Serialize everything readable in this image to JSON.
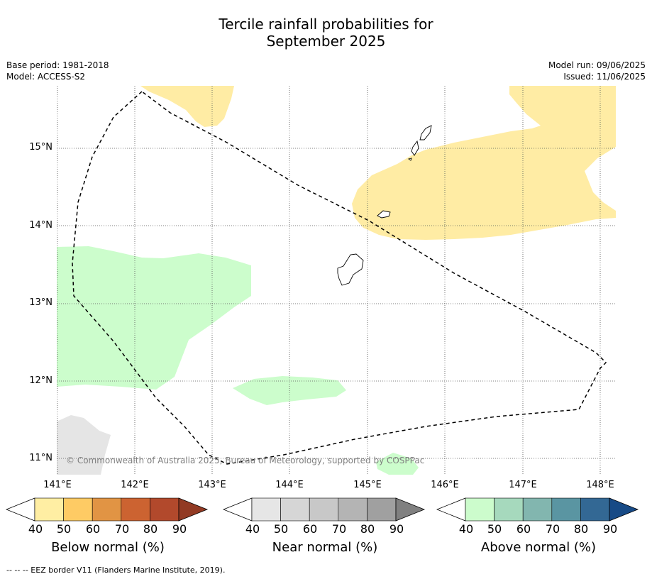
{
  "title_line1": "Tercile rainfall probabilities for",
  "title_line2": "September 2025",
  "meta_left": [
    "Base period: 1981-2018",
    "Model: ACCESS-S2"
  ],
  "meta_right": [
    "Model run: 09/06/2025",
    "Issued: 11/06/2025"
  ],
  "lat_ticks": [
    "15°N",
    "14°N",
    "13°N",
    "12°N",
    "11°N"
  ],
  "lon_ticks": [
    "141°E",
    "142°E",
    "143°E",
    "144°E",
    "145°E",
    "146°E",
    "147°E",
    "148°E"
  ],
  "copyright": "© Commonwealth of Australia 2025, Bureau of Meteorology, supported by COSPPac",
  "colorbars": [
    {
      "label": "Below normal (%)",
      "ticks": [
        "40",
        "50",
        "60",
        "70",
        "80",
        "90"
      ],
      "colors": [
        "#ffffff",
        "#ffeea3",
        "#fecb64",
        "#e19444",
        "#cc6331",
        "#b2492c",
        "#923a23"
      ]
    },
    {
      "label": "Near normal (%)",
      "ticks": [
        "40",
        "50",
        "60",
        "70",
        "80",
        "90"
      ],
      "colors": [
        "#ffffff",
        "#e6e6e6",
        "#d6d6d6",
        "#c8c8c8",
        "#b4b4b4",
        "#a0a0a0",
        "#808080"
      ]
    },
    {
      "label": "Above normal (%)",
      "ticks": [
        "40",
        "50",
        "60",
        "70",
        "80",
        "90"
      ],
      "colors": [
        "#ffffff",
        "#ccfccc",
        "#a6d9bd",
        "#82b6af",
        "#5a95a2",
        "#336894",
        "#174a86"
      ]
    }
  ],
  "footer": "--  --  -- EEZ border V11 (Flanders Marine Institute, 2019)."
}
